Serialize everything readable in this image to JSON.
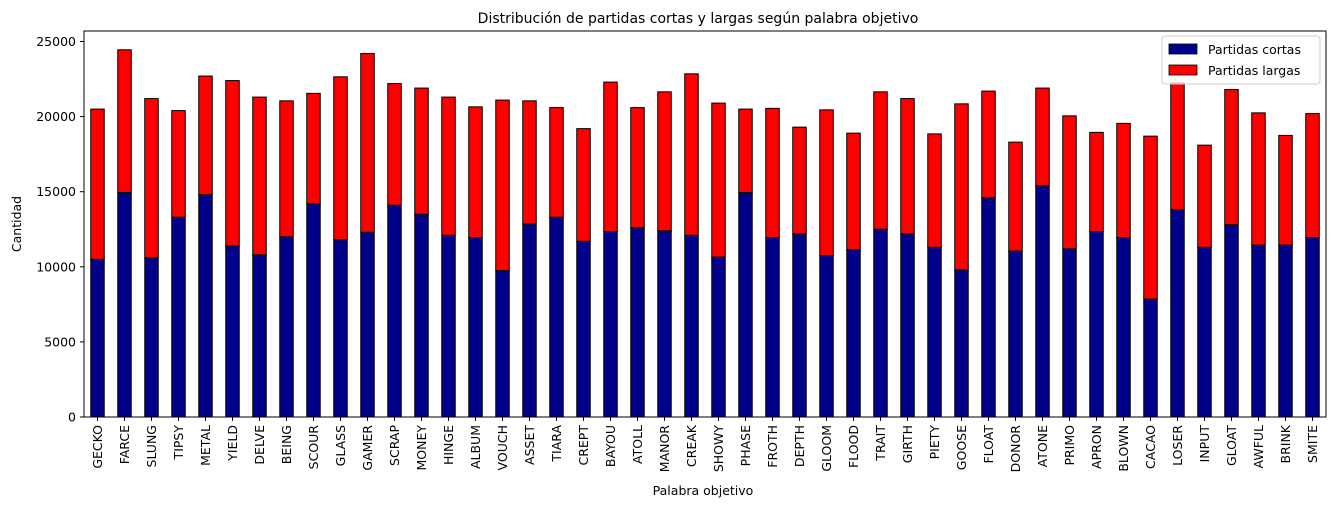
{
  "chart_data": {
    "type": "bar",
    "stacked": true,
    "title": "Distribución de partidas cortas y largas según palabra objetivo",
    "xlabel": "Palabra objetivo",
    "ylabel": "Cantidad",
    "ylim": [
      0,
      25700
    ],
    "yticks": [
      0,
      5000,
      10000,
      15000,
      20000,
      25000
    ],
    "grid": false,
    "legend_position": "top-right",
    "categories": [
      "GECKO",
      "FARCE",
      "SLUNG",
      "TIPSY",
      "METAL",
      "YIELD",
      "DELVE",
      "BEING",
      "SCOUR",
      "GLASS",
      "GAMER",
      "SCRAP",
      "MONEY",
      "HINGE",
      "ALBUM",
      "VOUCH",
      "ASSET",
      "TIARA",
      "CREPT",
      "BAYOU",
      "ATOLL",
      "MANOR",
      "CREAK",
      "SHOWY",
      "PHASE",
      "FROTH",
      "DEPTH",
      "GLOOM",
      "FLOOD",
      "TRAIT",
      "GIRTH",
      "PIETY",
      "GOOSE",
      "FLOAT",
      "DONOR",
      "ATONE",
      "PRIMO",
      "APRON",
      "BLOWN",
      "CACAO",
      "LOSER",
      "INPUT",
      "GLOAT",
      "AWFUL",
      "BRINK",
      "SMITE"
    ],
    "series": [
      {
        "name": "Partidas cortas",
        "color": "#00008b",
        "values": [
          10500,
          14950,
          10600,
          13300,
          14800,
          11400,
          10800,
          12000,
          14200,
          11800,
          12300,
          14100,
          13500,
          12100,
          11950,
          9750,
          12850,
          13300,
          11700,
          12350,
          12600,
          12400,
          12100,
          10650,
          14950,
          11950,
          12200,
          10750,
          11150,
          12500,
          12200,
          11300,
          9800,
          14600,
          11050,
          15400,
          11200,
          12350,
          11950,
          7850,
          13800,
          11300,
          12800,
          11450,
          11450,
          11950
        ]
      },
      {
        "name": "Partidas largas",
        "color": "#ff0000",
        "values": [
          10000,
          9500,
          10600,
          7100,
          7900,
          11000,
          10500,
          9050,
          7350,
          10850,
          11900,
          8100,
          8400,
          9200,
          8700,
          11350,
          8200,
          7300,
          7500,
          9950,
          8000,
          9250,
          10750,
          10250,
          5550,
          8600,
          7100,
          9700,
          7750,
          9150,
          9000,
          7550,
          11050,
          7100,
          7250,
          6500,
          8850,
          6600,
          7600,
          10850,
          8450,
          6800,
          9000,
          8800,
          7300,
          8250
        ]
      }
    ]
  }
}
